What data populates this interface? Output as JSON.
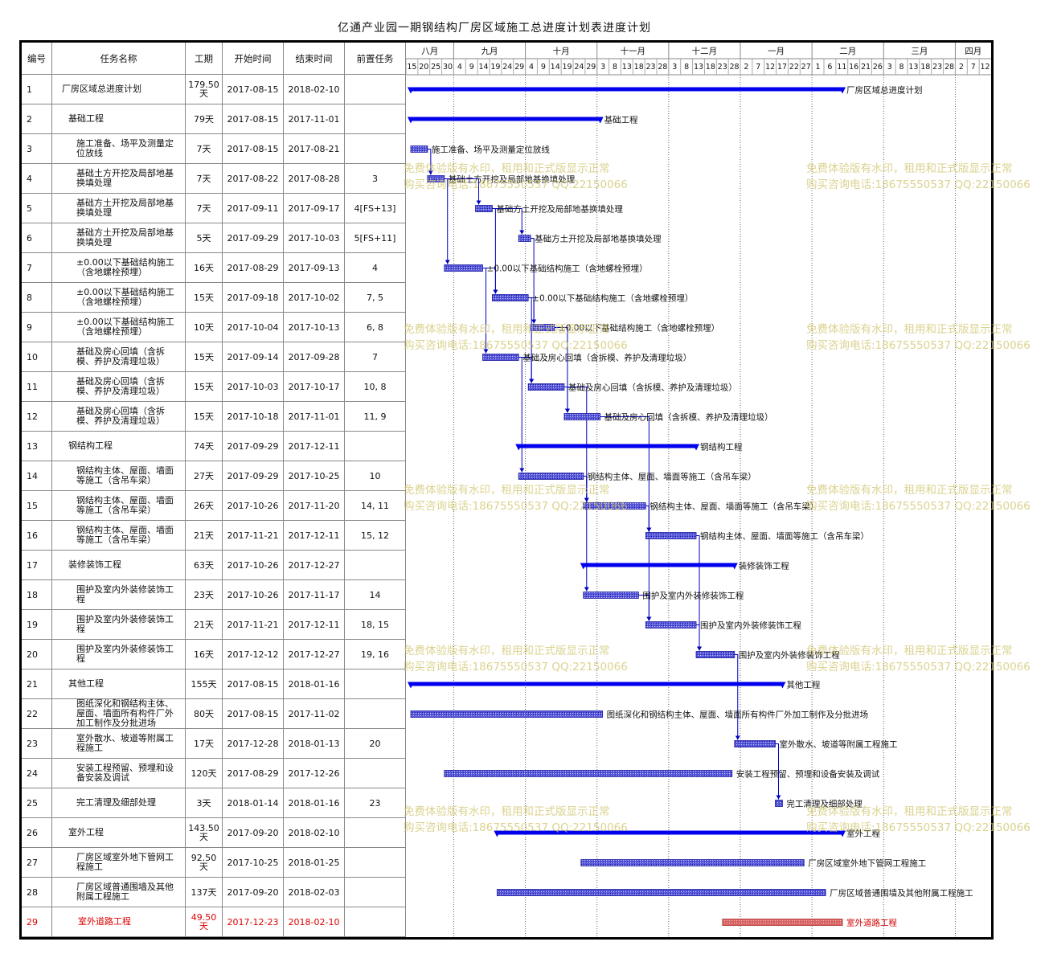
{
  "title": "亿通产业园一期钢结构厂房区域施工总进度计划表进度计划",
  "headers": {
    "id": "编号",
    "name": "任务名称",
    "duration": "工期",
    "start": "开始时间",
    "end": "结束时间",
    "pred": "前置任务"
  },
  "months": [
    "八月",
    "九月",
    "十月",
    "十一月",
    "十二月",
    "一月",
    "二月",
    "三月",
    "四月"
  ],
  "day_ticks": [
    "15",
    "20",
    "25",
    "30",
    "4",
    "9",
    "14",
    "19",
    "24",
    "29",
    "4",
    "9",
    "14",
    "19",
    "24",
    "29",
    "3",
    "8",
    "13",
    "18",
    "23",
    "28",
    "3",
    "8",
    "13",
    "18",
    "23",
    "28",
    "2",
    "7",
    "12",
    "17",
    "22",
    "27",
    "1",
    "6",
    "11",
    "16",
    "21",
    "26",
    "3",
    "8",
    "13",
    "18",
    "23",
    "28",
    "2",
    "7",
    "12"
  ],
  "watermark": {
    "line1": "免费体验版有水印，租用和正式版显示正常",
    "line2": "购买咨询电话:18675550537 QQ:22150066"
  },
  "colors": {
    "bar": "#1f1fc8",
    "summary": "#0000ee",
    "critical": "#d85050",
    "link": "#0000c0",
    "red_text": "#d00000"
  },
  "chart_data": {
    "type": "gantt",
    "x_axis": {
      "start": "2017-08-13",
      "end": "2018-04-14",
      "months": [
        "八月",
        "九月",
        "十月",
        "十一月",
        "十二月",
        "一月",
        "二月",
        "三月",
        "四月"
      ]
    },
    "tasks": [
      {
        "id": "1",
        "name": "厂房区域总进度计划",
        "duration": "179.50天",
        "start": "2017-08-15",
        "end": "2018-02-10",
        "pred": "",
        "level": 0,
        "summary": true,
        "critical": false
      },
      {
        "id": "2",
        "name": "基础工程",
        "duration": "79天",
        "start": "2017-08-15",
        "end": "2017-11-01",
        "pred": "",
        "level": 1,
        "summary": true,
        "critical": false
      },
      {
        "id": "3",
        "name": "施工准备、场平及测量定位放线",
        "duration": "7天",
        "start": "2017-08-15",
        "end": "2017-08-21",
        "pred": "",
        "level": 2,
        "summary": false,
        "critical": false
      },
      {
        "id": "4",
        "name": "基础土方开挖及局部地基换填处理",
        "duration": "7天",
        "start": "2017-08-22",
        "end": "2017-08-28",
        "pred": "3",
        "level": 2,
        "summary": false,
        "critical": false
      },
      {
        "id": "5",
        "name": "基础方土开挖及局部地基换填处理",
        "duration": "7天",
        "start": "2017-09-11",
        "end": "2017-09-17",
        "pred": "4[FS+13]",
        "level": 2,
        "summary": false,
        "critical": false
      },
      {
        "id": "6",
        "name": "基础方土开挖及局部地基换填处理",
        "duration": "5天",
        "start": "2017-09-29",
        "end": "2017-10-03",
        "pred": "5[FS+11]",
        "level": 2,
        "summary": false,
        "critical": false
      },
      {
        "id": "7",
        "name": "±0.00以下基础结构施工（含地螺栓预埋）",
        "duration": "16天",
        "start": "2017-08-29",
        "end": "2017-09-13",
        "pred": "4",
        "level": 2,
        "summary": false,
        "critical": false
      },
      {
        "id": "8",
        "name": "±0.00以下基础结构施工（含地螺栓预埋）",
        "duration": "15天",
        "start": "2017-09-18",
        "end": "2017-10-02",
        "pred": "7, 5",
        "level": 2,
        "summary": false,
        "critical": false
      },
      {
        "id": "9",
        "name": "±0.00以下基础结构施工（含地螺栓预埋）",
        "duration": "10天",
        "start": "2017-10-04",
        "end": "2017-10-13",
        "pred": "6, 8",
        "level": 2,
        "summary": false,
        "critical": false
      },
      {
        "id": "10",
        "name": "基础及房心回填（含拆模、养护及清理垃圾）",
        "duration": "15天",
        "start": "2017-09-14",
        "end": "2017-09-28",
        "pred": "7",
        "level": 2,
        "summary": false,
        "critical": false
      },
      {
        "id": "11",
        "name": "基础及房心回填（含拆模、养护及清理垃圾）",
        "duration": "15天",
        "start": "2017-10-03",
        "end": "2017-10-17",
        "pred": "10, 8",
        "level": 2,
        "summary": false,
        "critical": false
      },
      {
        "id": "12",
        "name": "基础及房心回填（含拆模、养护及清理垃圾）",
        "duration": "15天",
        "start": "2017-10-18",
        "end": "2017-11-01",
        "pred": "11, 9",
        "level": 2,
        "summary": false,
        "critical": false
      },
      {
        "id": "13",
        "name": "钢结构工程",
        "duration": "74天",
        "start": "2017-09-29",
        "end": "2017-12-11",
        "pred": "",
        "level": 1,
        "summary": true,
        "critical": false
      },
      {
        "id": "14",
        "name": "钢结构主体、屋面、墙面等施工（含吊车梁）",
        "duration": "27天",
        "start": "2017-09-29",
        "end": "2017-10-25",
        "pred": "10",
        "level": 2,
        "summary": false,
        "critical": false
      },
      {
        "id": "15",
        "name": "钢结构主体、屋面、墙面等施工（含吊车梁）",
        "duration": "26天",
        "start": "2017-10-26",
        "end": "2017-11-20",
        "pred": "14, 11",
        "level": 2,
        "summary": false,
        "critical": false
      },
      {
        "id": "16",
        "name": "钢结构主体、屋面、墙面等施工（含吊车梁）",
        "duration": "21天",
        "start": "2017-11-21",
        "end": "2017-12-11",
        "pred": "15, 12",
        "level": 2,
        "summary": false,
        "critical": false
      },
      {
        "id": "17",
        "name": "装修装饰工程",
        "duration": "63天",
        "start": "2017-10-26",
        "end": "2017-12-27",
        "pred": "",
        "level": 1,
        "summary": true,
        "critical": false
      },
      {
        "id": "18",
        "name": "围护及室内外装修装饰工程",
        "duration": "23天",
        "start": "2017-10-26",
        "end": "2017-11-17",
        "pred": "14",
        "level": 2,
        "summary": false,
        "critical": false
      },
      {
        "id": "19",
        "name": "围护及室内外装修装饰工程",
        "duration": "21天",
        "start": "2017-11-21",
        "end": "2017-12-11",
        "pred": "18, 15",
        "level": 2,
        "summary": false,
        "critical": false
      },
      {
        "id": "20",
        "name": "围护及室内外装修装饰工程",
        "duration": "16天",
        "start": "2017-12-12",
        "end": "2017-12-27",
        "pred": "19, 16",
        "level": 2,
        "summary": false,
        "critical": false
      },
      {
        "id": "21",
        "name": "其他工程",
        "duration": "155天",
        "start": "2017-08-15",
        "end": "2018-01-16",
        "pred": "",
        "level": 1,
        "summary": true,
        "critical": false
      },
      {
        "id": "22",
        "name": "图纸深化和钢结构主体、屋面、墙面所有构件厂外加工制作及分批进场",
        "duration": "80天",
        "start": "2017-08-15",
        "end": "2017-11-02",
        "pred": "",
        "level": 2,
        "summary": false,
        "critical": false
      },
      {
        "id": "23",
        "name": "室外散水、坡道等附属工程施工",
        "duration": "17天",
        "start": "2017-12-28",
        "end": "2018-01-13",
        "pred": "20",
        "level": 2,
        "summary": false,
        "critical": false
      },
      {
        "id": "24",
        "name": "安装工程预留、预埋和设备安装及调试",
        "duration": "120天",
        "start": "2017-08-29",
        "end": "2017-12-26",
        "pred": "",
        "level": 2,
        "summary": false,
        "critical": false
      },
      {
        "id": "25",
        "name": "完工清理及细部处理",
        "duration": "3天",
        "start": "2018-01-14",
        "end": "2018-01-16",
        "pred": "23",
        "level": 2,
        "summary": false,
        "critical": false
      },
      {
        "id": "26",
        "name": "室外工程",
        "duration": "143.50天",
        "start": "2017-09-20",
        "end": "2018-02-10",
        "pred": "",
        "level": 1,
        "summary": true,
        "critical": false
      },
      {
        "id": "27",
        "name": "厂房区域室外地下管网工程施工",
        "duration": "92.50天",
        "start": "2017-10-25",
        "end": "2018-01-25",
        "pred": "",
        "level": 2,
        "summary": false,
        "critical": false
      },
      {
        "id": "28",
        "name": "厂房区域普通围墙及其他附属工程施工",
        "duration": "137天",
        "start": "2017-09-20",
        "end": "2018-02-03",
        "pred": "",
        "level": 2,
        "summary": false,
        "critical": false
      },
      {
        "id": "29",
        "name": "室外道路工程",
        "duration": "49.50天",
        "start": "2017-12-23",
        "end": "2018-02-10",
        "pred": "",
        "level": 1,
        "summary": false,
        "critical": true
      }
    ]
  }
}
